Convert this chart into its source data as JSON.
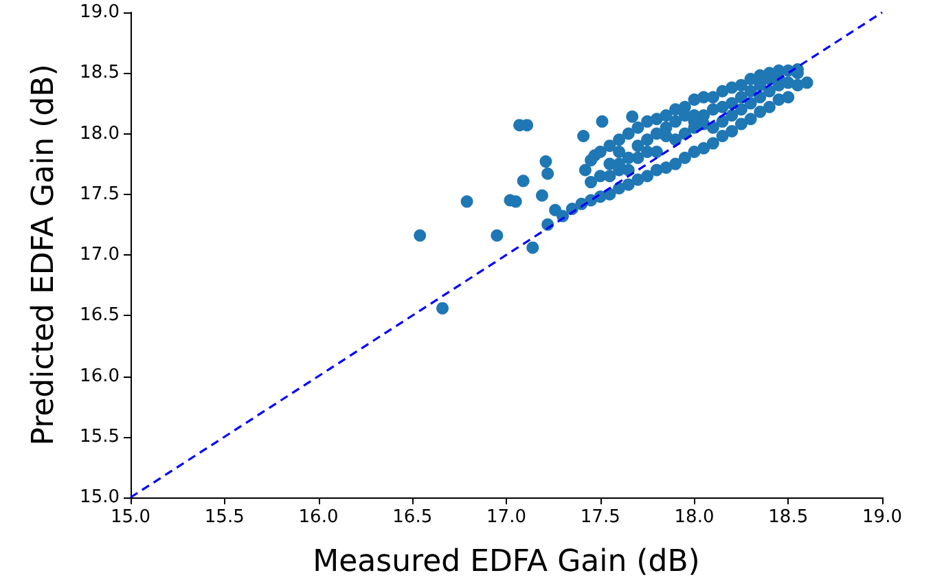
{
  "chart_data": {
    "type": "scatter",
    "xlabel": "Measured EDFA Gain (dB)",
    "ylabel": "Predicted EDFA Gain (dB)",
    "xlim": [
      15.0,
      19.0
    ],
    "ylim": [
      15.0,
      19.0
    ],
    "xticks": [
      {
        "value": 15,
        "label": "15.0"
      },
      {
        "value": 15.5,
        "label": "15.5"
      },
      {
        "value": 16,
        "label": "16.0"
      },
      {
        "value": 16.5,
        "label": "16.5"
      },
      {
        "value": 17,
        "label": "17.0"
      },
      {
        "value": 17.5,
        "label": "17.5"
      },
      {
        "value": 18,
        "label": "18.0"
      },
      {
        "value": 18.5,
        "label": "18.5"
      },
      {
        "value": 19,
        "label": "19.0"
      }
    ],
    "yticks": [
      {
        "value": 15,
        "label": "15.0"
      },
      {
        "value": 15.5,
        "label": "15.5"
      },
      {
        "value": 16,
        "label": "16.0"
      },
      {
        "value": 16.5,
        "label": "16.5"
      },
      {
        "value": 17,
        "label": "17.0"
      },
      {
        "value": 17.5,
        "label": "17.5"
      },
      {
        "value": 18,
        "label": "18.0"
      },
      {
        "value": 18.5,
        "label": "18.5"
      },
      {
        "value": 19,
        "label": "19.0"
      }
    ],
    "grid": false,
    "marker": "circle",
    "series": [
      {
        "color": "#1f77b4",
        "x": [
          16.54,
          16.66,
          16.79,
          16.95,
          17.02,
          17.05,
          17.07,
          17.11,
          17.09,
          17.14,
          17.19,
          17.21,
          17.22,
          17.22,
          17.26,
          17.41,
          17.51,
          17.47,
          17.67,
          17.3,
          17.35,
          17.4,
          17.42,
          17.45,
          17.45,
          17.5,
          17.5,
          17.55,
          17.55,
          17.6,
          17.6,
          17.65,
          17.65,
          17.7,
          17.7,
          17.75,
          17.75,
          17.8,
          17.8,
          17.85,
          17.85,
          17.9,
          17.9,
          17.95,
          17.95,
          18.0,
          18.0,
          18.05,
          18.05,
          18.1,
          18.1,
          18.15,
          18.15,
          18.2,
          18.2,
          18.25,
          18.25,
          18.3,
          18.3,
          18.35,
          18.35,
          18.4,
          18.4,
          18.45,
          18.45,
          18.5,
          18.5,
          18.55,
          18.55,
          18.6,
          17.6,
          17.75,
          17.9,
          18.05,
          18.2,
          18.35,
          18.5,
          17.55,
          17.7,
          17.85,
          18.0,
          18.15,
          18.3,
          18.45,
          17.5,
          17.55,
          17.6,
          17.65,
          17.7,
          17.75,
          17.8,
          17.8,
          17.85,
          17.9,
          17.95,
          17.95,
          18.0,
          18.05,
          18.1,
          18.1,
          18.15,
          18.2,
          18.25,
          18.25,
          18.3,
          18.35,
          18.4,
          18.45,
          18.55,
          17.65,
          17.45,
          17.6,
          18.0,
          18.4
        ],
        "values": [
          17.16,
          16.56,
          17.44,
          17.16,
          17.45,
          17.44,
          18.07,
          18.07,
          17.61,
          17.06,
          17.49,
          17.77,
          17.67,
          17.25,
          17.37,
          17.98,
          18.1,
          17.82,
          18.14,
          17.32,
          17.38,
          17.42,
          17.7,
          17.45,
          17.78,
          17.48,
          17.85,
          17.5,
          17.9,
          17.55,
          17.95,
          17.58,
          18.0,
          17.62,
          18.05,
          17.65,
          18.1,
          17.7,
          18.12,
          17.72,
          18.15,
          17.75,
          18.2,
          17.8,
          18.22,
          17.85,
          18.28,
          17.88,
          18.3,
          17.92,
          18.3,
          17.98,
          18.35,
          18.02,
          18.38,
          18.08,
          18.4,
          18.12,
          18.45,
          18.18,
          18.48,
          18.22,
          18.5,
          18.28,
          18.52,
          18.3,
          18.52,
          18.4,
          18.53,
          18.42,
          17.75,
          17.85,
          17.95,
          18.08,
          18.15,
          18.3,
          18.42,
          17.65,
          17.8,
          17.98,
          18.1,
          18.22,
          18.35,
          18.45,
          17.65,
          17.75,
          17.85,
          17.8,
          17.9,
          17.95,
          18.0,
          17.85,
          18.05,
          18.1,
          18.0,
          18.15,
          18.05,
          18.15,
          18.2,
          18.05,
          18.1,
          18.25,
          18.2,
          18.3,
          18.25,
          18.4,
          18.35,
          18.4,
          18.5,
          17.7,
          17.6,
          17.7,
          18.15,
          18.45
        ]
      },
      {
        "type": "line",
        "color": "#0000ff",
        "line_style": "dashed",
        "marker": "none",
        "x": [
          15,
          19
        ],
        "values": [
          15,
          19
        ]
      }
    ]
  }
}
